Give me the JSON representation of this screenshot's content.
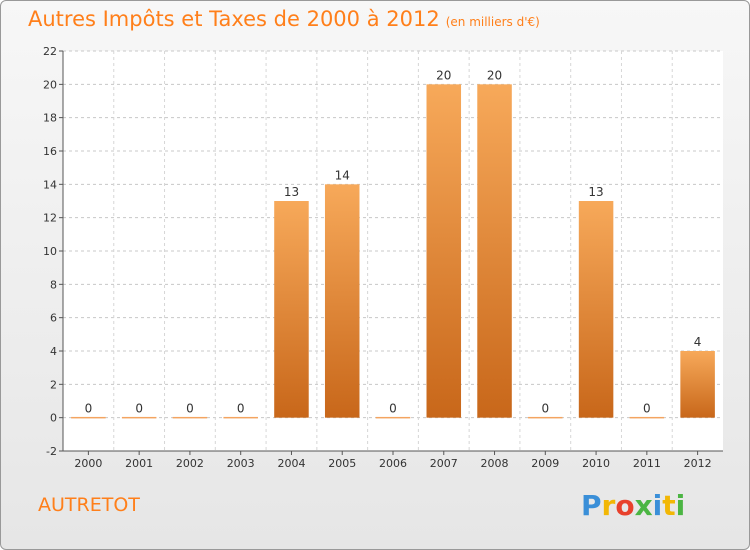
{
  "title": "Autres Impôts et Taxes de 2000 à 2012",
  "subtitle": "(en milliers d'€)",
  "commune": "AUTRETOT",
  "logo": {
    "letters": [
      "P",
      "r",
      "o",
      "x",
      "i",
      "t",
      "i"
    ],
    "colors": [
      "#3a8fd8",
      "#f2b705",
      "#e8412c",
      "#4bb543",
      "#3a8fd8",
      "#f2b705",
      "#4bb543"
    ]
  },
  "colors": {
    "title": "#ff7f1a",
    "bar_top": "#f7a95a",
    "bar_bottom": "#c8671a"
  },
  "chart_data": {
    "type": "bar",
    "categories": [
      "2000",
      "2001",
      "2002",
      "2003",
      "2004",
      "2005",
      "2006",
      "2007",
      "2008",
      "2009",
      "2010",
      "2011",
      "2012"
    ],
    "values": [
      0,
      0,
      0,
      0,
      13,
      14,
      0,
      20,
      20,
      0,
      13,
      0,
      4
    ],
    "ylim": [
      -2,
      22
    ],
    "yticks": [
      -2,
      0,
      2,
      4,
      6,
      8,
      10,
      12,
      14,
      16,
      18,
      20,
      22
    ],
    "grid": true,
    "xlabel": "",
    "ylabel": ""
  }
}
